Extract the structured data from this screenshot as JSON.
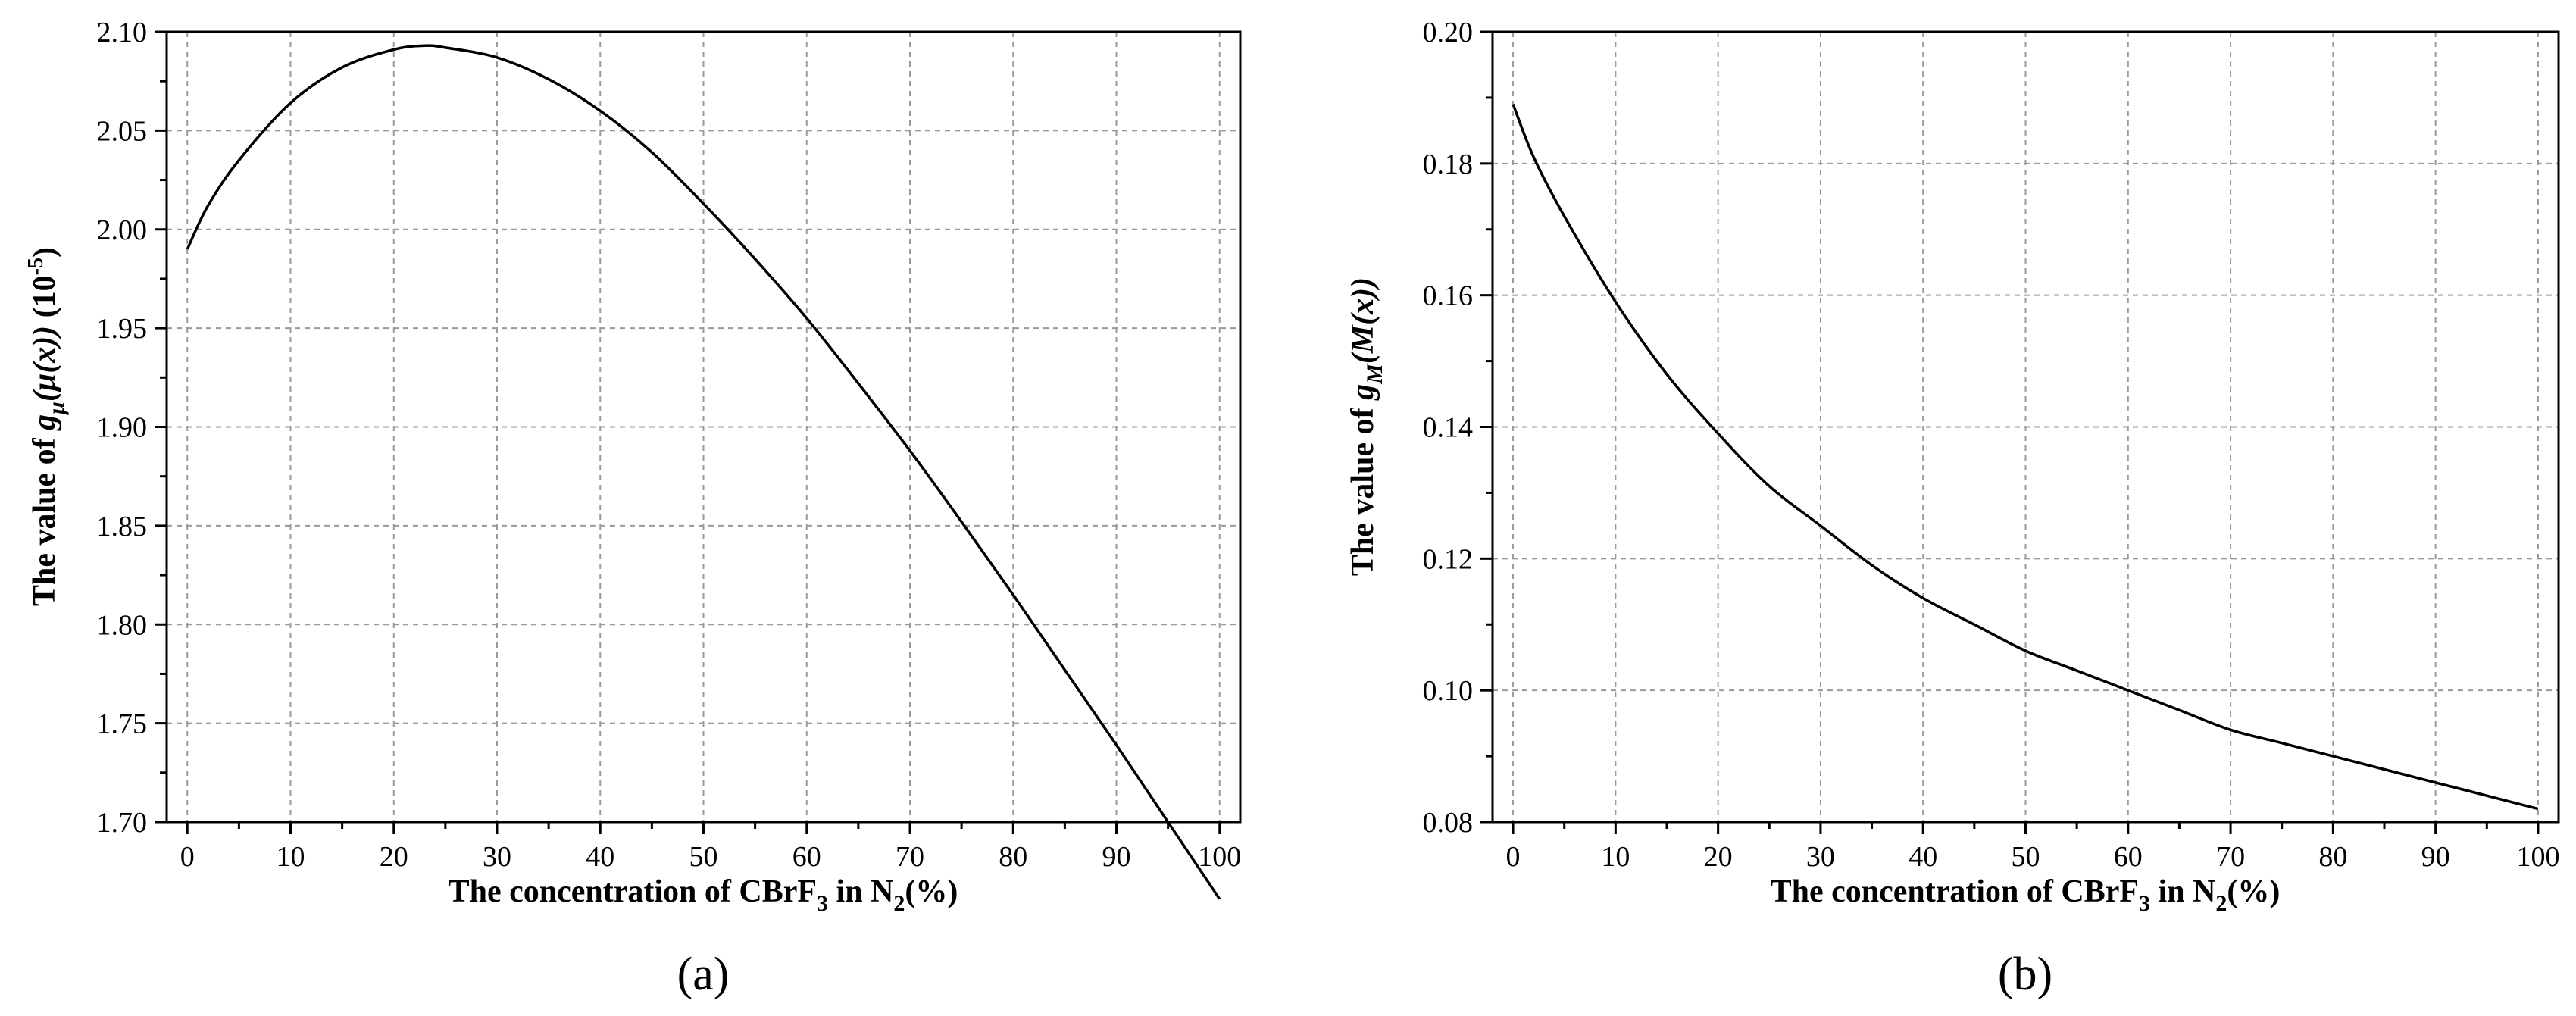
{
  "chart_data": [
    {
      "type": "line",
      "panel_label": "(a)",
      "xlabel": {
        "prefix": "The concentration of CBrF",
        "sub1": "3",
        "middle": " in N",
        "sub2": "2",
        "suffix": "(%)"
      },
      "ylabel": {
        "prefix": "The value of ",
        "g": "g",
        "sub": "μ",
        "arg": "(μ(x))",
        "unit": " (10",
        "exp": "-5",
        "close": ")"
      },
      "xlim": [
        -2,
        102
      ],
      "ylim": [
        1.7,
        2.1
      ],
      "xticks": [
        "0",
        "10",
        "20",
        "30",
        "40",
        "50",
        "60",
        "70",
        "80",
        "90",
        "100"
      ],
      "yticks": [
        "1.70",
        "1.75",
        "1.80",
        "1.85",
        "1.90",
        "1.95",
        "2.00",
        "2.05",
        "2.10"
      ],
      "grid": true,
      "series": [
        {
          "x": [
            0,
            2,
            5,
            10,
            15,
            20,
            23,
            25,
            30,
            35,
            40,
            45,
            50,
            55,
            60,
            65,
            70,
            75,
            80,
            85,
            90,
            95,
            100
          ],
          "y": [
            1.99,
            2.012,
            2.035,
            2.064,
            2.082,
            2.091,
            2.093,
            2.092,
            2.087,
            2.076,
            2.06,
            2.039,
            2.013,
            1.985,
            1.955,
            1.922,
            1.888,
            1.852,
            1.815,
            1.777,
            1.739,
            1.7,
            1.661
          ]
        }
      ]
    },
    {
      "type": "line",
      "panel_label": "(b)",
      "xlabel": {
        "prefix": "The concentration of CBrF",
        "sub1": "3",
        "middle": " in N",
        "sub2": "2",
        "suffix": "(%)"
      },
      "ylabel": {
        "prefix": "The value of ",
        "g": "g",
        "sub": "M",
        "arg": "(M(x))",
        "unit": "",
        "exp": "",
        "close": ""
      },
      "xlim": [
        -2,
        102
      ],
      "ylim": [
        0.08,
        0.2
      ],
      "xticks": [
        "0",
        "10",
        "20",
        "30",
        "40",
        "50",
        "60",
        "70",
        "80",
        "90",
        "100"
      ],
      "yticks": [
        "0.08",
        "0.10",
        "0.12",
        "0.14",
        "0.16",
        "0.18",
        "0.20"
      ],
      "grid": true,
      "series": [
        {
          "x": [
            0,
            2,
            5,
            10,
            15,
            20,
            25,
            30,
            35,
            40,
            45,
            50,
            55,
            60,
            65,
            70,
            75,
            80,
            85,
            90,
            95,
            100
          ],
          "y": [
            0.189,
            0.181,
            0.172,
            0.159,
            0.148,
            0.139,
            0.131,
            0.125,
            0.119,
            0.114,
            0.11,
            0.106,
            0.103,
            0.1,
            0.097,
            0.094,
            0.092,
            0.09,
            0.088,
            0.086,
            0.084,
            0.082
          ]
        }
      ]
    }
  ]
}
